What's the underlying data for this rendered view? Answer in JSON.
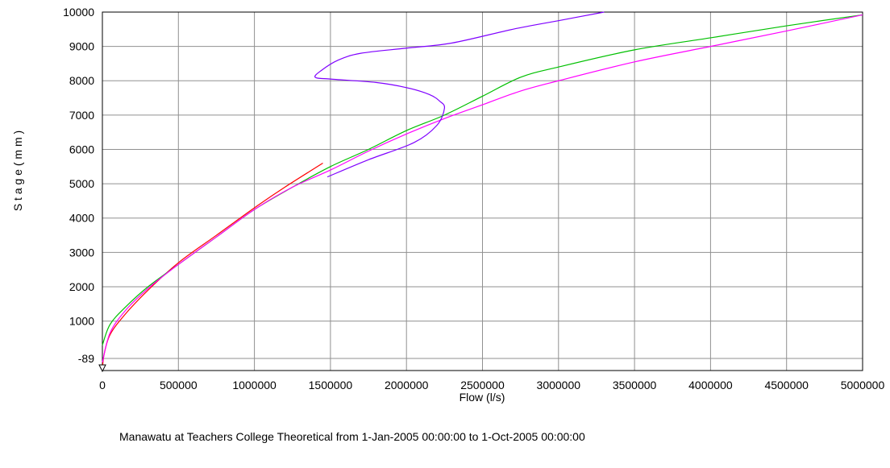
{
  "chart_data": {
    "type": "line",
    "xlabel": "Flow (l/s)",
    "ylabel": "S t a g e   ( m m )",
    "caption": "Manawatu at Teachers College Theoretical from  1-Jan-2005 00:00:00 to  1-Oct-2005 00:00:00",
    "xlim": [
      0,
      5000000
    ],
    "ylim": [
      -440,
      10000
    ],
    "grid": true,
    "x_ticks": [
      {
        "value": 0,
        "label": "0"
      },
      {
        "value": 500000,
        "label": "500000"
      },
      {
        "value": 1000000,
        "label": "1000000"
      },
      {
        "value": 1500000,
        "label": "1500000"
      },
      {
        "value": 2000000,
        "label": "2000000"
      },
      {
        "value": 2500000,
        "label": "2500000"
      },
      {
        "value": 3000000,
        "label": "3000000"
      },
      {
        "value": 3500000,
        "label": "3500000"
      },
      {
        "value": 4000000,
        "label": "4000000"
      },
      {
        "value": 4500000,
        "label": "4500000"
      },
      {
        "value": 5000000,
        "label": "5000000"
      }
    ],
    "y_ticks": [
      {
        "value": -89,
        "label": "-89"
      },
      {
        "value": 1000,
        "label": "1000"
      },
      {
        "value": 2000,
        "label": "2000"
      },
      {
        "value": 3000,
        "label": "3000"
      },
      {
        "value": 4000,
        "label": "4000"
      },
      {
        "value": 5000,
        "label": "5000"
      },
      {
        "value": 6000,
        "label": "6000"
      },
      {
        "value": 7000,
        "label": "7000"
      },
      {
        "value": 8000,
        "label": "8000"
      },
      {
        "value": 9000,
        "label": "9000"
      },
      {
        "value": 10000,
        "label": "10000"
      }
    ],
    "series": [
      {
        "color": "#ff0000",
        "points": [
          [
            0,
            -440
          ],
          [
            10000,
            0
          ],
          [
            50000,
            600
          ],
          [
            150000,
            1200
          ],
          [
            300000,
            1900
          ],
          [
            500000,
            2700
          ],
          [
            750000,
            3500
          ],
          [
            1000000,
            4300
          ],
          [
            1200000,
            4900
          ],
          [
            1450000,
            5600
          ]
        ]
      },
      {
        "color": "#00c000",
        "points": [
          [
            0,
            300
          ],
          [
            50000,
            900
          ],
          [
            150000,
            1400
          ],
          [
            300000,
            2000
          ],
          [
            500000,
            2650
          ],
          [
            750000,
            3450
          ],
          [
            1000000,
            4250
          ],
          [
            1250000,
            4900
          ],
          [
            1500000,
            5500
          ],
          [
            1750000,
            6000
          ],
          [
            2000000,
            6550
          ],
          [
            2250000,
            7000
          ],
          [
            2500000,
            7550
          ],
          [
            2750000,
            8100
          ],
          [
            3000000,
            8400
          ],
          [
            3500000,
            8900
          ],
          [
            4000000,
            9250
          ],
          [
            4500000,
            9600
          ],
          [
            5000000,
            9920
          ]
        ]
      },
      {
        "color": "#ff00ff",
        "points": [
          [
            0,
            -200
          ],
          [
            50000,
            650
          ],
          [
            150000,
            1300
          ],
          [
            300000,
            1950
          ],
          [
            500000,
            2650
          ],
          [
            750000,
            3450
          ],
          [
            1000000,
            4250
          ],
          [
            1250000,
            4900
          ],
          [
            1500000,
            5400
          ],
          [
            1750000,
            5950
          ],
          [
            2000000,
            6450
          ],
          [
            2250000,
            6900
          ],
          [
            2500000,
            7300
          ],
          [
            2750000,
            7700
          ],
          [
            3000000,
            8000
          ],
          [
            3500000,
            8550
          ],
          [
            4000000,
            9000
          ],
          [
            4500000,
            9450
          ],
          [
            5000000,
            9920
          ]
        ]
      },
      {
        "color": "#7f00ff",
        "points": [
          [
            1480000,
            5200
          ],
          [
            1750000,
            5700
          ],
          [
            2050000,
            6200
          ],
          [
            2200000,
            6700
          ],
          [
            2250000,
            7200
          ],
          [
            2220000,
            7400
          ],
          [
            2150000,
            7600
          ],
          [
            2000000,
            7800
          ],
          [
            1800000,
            7950
          ],
          [
            1500000,
            8050
          ],
          [
            1400000,
            8100
          ],
          [
            1440000,
            8300
          ],
          [
            1550000,
            8600
          ],
          [
            1700000,
            8800
          ],
          [
            2000000,
            8950
          ],
          [
            2300000,
            9100
          ],
          [
            2700000,
            9500
          ],
          [
            3000000,
            9750
          ],
          [
            3300000,
            10000
          ]
        ]
      }
    ]
  }
}
